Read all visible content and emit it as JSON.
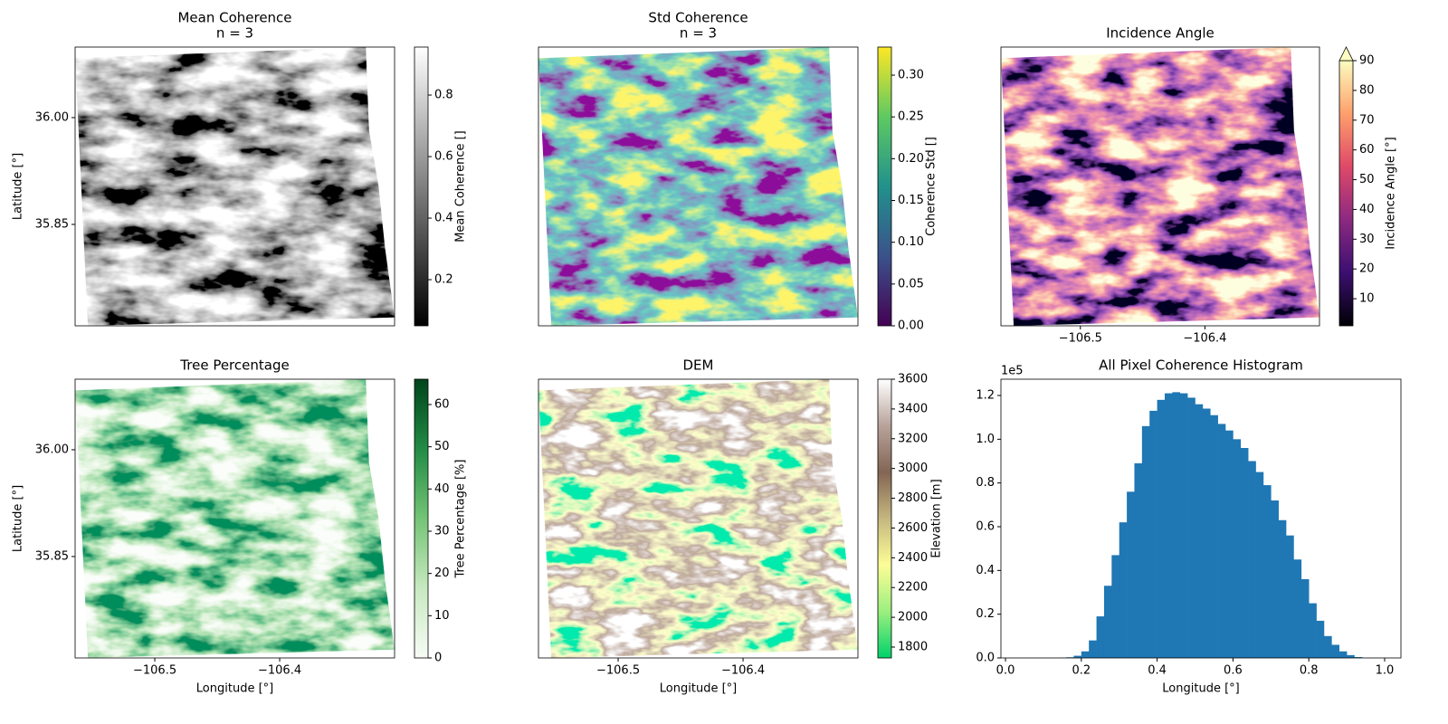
{
  "chart_data": [
    {
      "type": "image",
      "title": "Mean Coherence",
      "subtitle": "n = 3",
      "ylabel": "Latitude [°]",
      "xlim": [
        -106.5638,
        -106.308
      ],
      "ylim": [
        35.7076,
        36.0991
      ],
      "yticks": [
        {
          "value": 36.0,
          "label": "36.00"
        },
        35.85
      ],
      "colorbar": {
        "label": "Mean Coherence []",
        "lim": [
          0.05,
          0.956
        ],
        "ticks": [
          0.2,
          0.4,
          0.6,
          0.8
        ],
        "colors": [
          "#000000",
          "#ffffff"
        ]
      }
    },
    {
      "type": "image",
      "title": "Std Coherence",
      "subtitle": "n = 3",
      "xlim": [
        -106.5638,
        -106.308
      ],
      "ylim": [
        35.7076,
        36.0991
      ],
      "colorbar": {
        "label": "Coherence Std []",
        "lim": [
          0,
          0.3336
        ],
        "ticks": [
          {
            "value": 0,
            "label": "0.00"
          },
          0.05,
          {
            "value": 0.1,
            "label": "0.10"
          },
          0.15,
          {
            "value": 0.2,
            "label": "0.20"
          },
          0.25,
          {
            "value": 0.3,
            "label": "0.30"
          }
        ],
        "colors": [
          "#440154",
          "#3b528b",
          "#21918c",
          "#5ec962",
          "#fde725"
        ]
      }
    },
    {
      "type": "image",
      "title": "Incidence Angle",
      "xlim": [
        -106.5638,
        -106.308
      ],
      "ylim": [
        35.7076,
        36.0991
      ],
      "xticks": [
        {
          "value": -106.5,
          "label": "−106.5"
        },
        {
          "value": -106.4,
          "label": "−106.4"
        }
      ],
      "colorbar": {
        "label": "Incidence Angle [°]",
        "lim": [
          0.9,
          90
        ],
        "extend": "max",
        "ticks": [
          10,
          20,
          30,
          40,
          50,
          60,
          70,
          80,
          90
        ],
        "colors": [
          "#000004",
          "#3b0f70",
          "#8c2981",
          "#de4968",
          "#fe9f6d",
          "#fcfdbf"
        ]
      }
    },
    {
      "type": "image",
      "title": "Tree Percentage",
      "xlabel": "Longitude [°]",
      "ylabel": "Latitude [°]",
      "xlim": [
        -106.5638,
        -106.308
      ],
      "ylim": [
        35.7076,
        36.0991
      ],
      "xticks": [
        {
          "value": -106.5,
          "label": "−106.5"
        },
        {
          "value": -106.4,
          "label": "−106.4"
        }
      ],
      "yticks": [
        {
          "value": 36.0,
          "label": "36.00"
        },
        35.85
      ],
      "colorbar": {
        "label": "Tree Percentage [%]",
        "lim": [
          0,
          66
        ],
        "ticks": [
          0,
          10,
          20,
          30,
          40,
          50,
          60
        ],
        "colors": [
          "#f7fcf5",
          "#c7e9c0",
          "#74c476",
          "#238b45",
          "#00441b"
        ]
      }
    },
    {
      "type": "image",
      "title": "DEM",
      "xlabel": "Longitude [°]",
      "xlim": [
        -106.5638,
        -106.308
      ],
      "ylim": [
        35.7076,
        36.0991
      ],
      "xticks": [
        {
          "value": -106.5,
          "label": "−106.5"
        },
        {
          "value": -106.4,
          "label": "−106.4"
        }
      ],
      "colorbar": {
        "label": "Elevation [m]",
        "lim": [
          1727,
          3600
        ],
        "ticks": [
          1800,
          2000,
          2200,
          2400,
          2600,
          2800,
          3000,
          3200,
          3400,
          3600
        ],
        "colors": [
          "#00d26a",
          "#9cef7f",
          "#fdfd96",
          "#c5b77f",
          "#836554",
          "#b8a39a",
          "#ffffff"
        ]
      }
    },
    {
      "type": "histogram",
      "title": "All Pixel Coherence Histogram",
      "xlabel": "Longitude [°]",
      "offset_text": "1e5",
      "color": "#1f77b4",
      "xlim": [
        -0.012,
        1.043
      ],
      "ylim": [
        0,
        1.2745
      ],
      "xticks": [
        {
          "value": 0,
          "label": "0.0"
        },
        0.2,
        0.4,
        0.6,
        0.8,
        {
          "value": 1,
          "label": "1.0"
        }
      ],
      "yticks": [
        {
          "value": 0,
          "label": "0.0"
        },
        0.2,
        0.4,
        0.6,
        0.8,
        {
          "value": 1,
          "label": "1.0"
        },
        1.2
      ],
      "bins": [
        0.14,
        0.16,
        0.18,
        0.2,
        0.22,
        0.24,
        0.26,
        0.28,
        0.3,
        0.32,
        0.34,
        0.36,
        0.38,
        0.4,
        0.42,
        0.44,
        0.46,
        0.48,
        0.5,
        0.52,
        0.54,
        0.56,
        0.58,
        0.6,
        0.62,
        0.64,
        0.66,
        0.68,
        0.7,
        0.72,
        0.74,
        0.76,
        0.78,
        0.8,
        0.82,
        0.84,
        0.86,
        0.88,
        0.9,
        0.92,
        0.94
      ],
      "values": [
        0.001,
        0.003,
        0.01,
        0.03,
        0.08,
        0.19,
        0.33,
        0.47,
        0.62,
        0.76,
        0.89,
        1.06,
        1.13,
        1.18,
        1.21,
        1.215,
        1.21,
        1.19,
        1.16,
        1.14,
        1.11,
        1.07,
        1.04,
        1.0,
        0.96,
        0.9,
        0.85,
        0.79,
        0.72,
        0.63,
        0.56,
        0.45,
        0.36,
        0.25,
        0.17,
        0.1,
        0.06,
        0.03,
        0.013,
        0.004
      ]
    }
  ]
}
